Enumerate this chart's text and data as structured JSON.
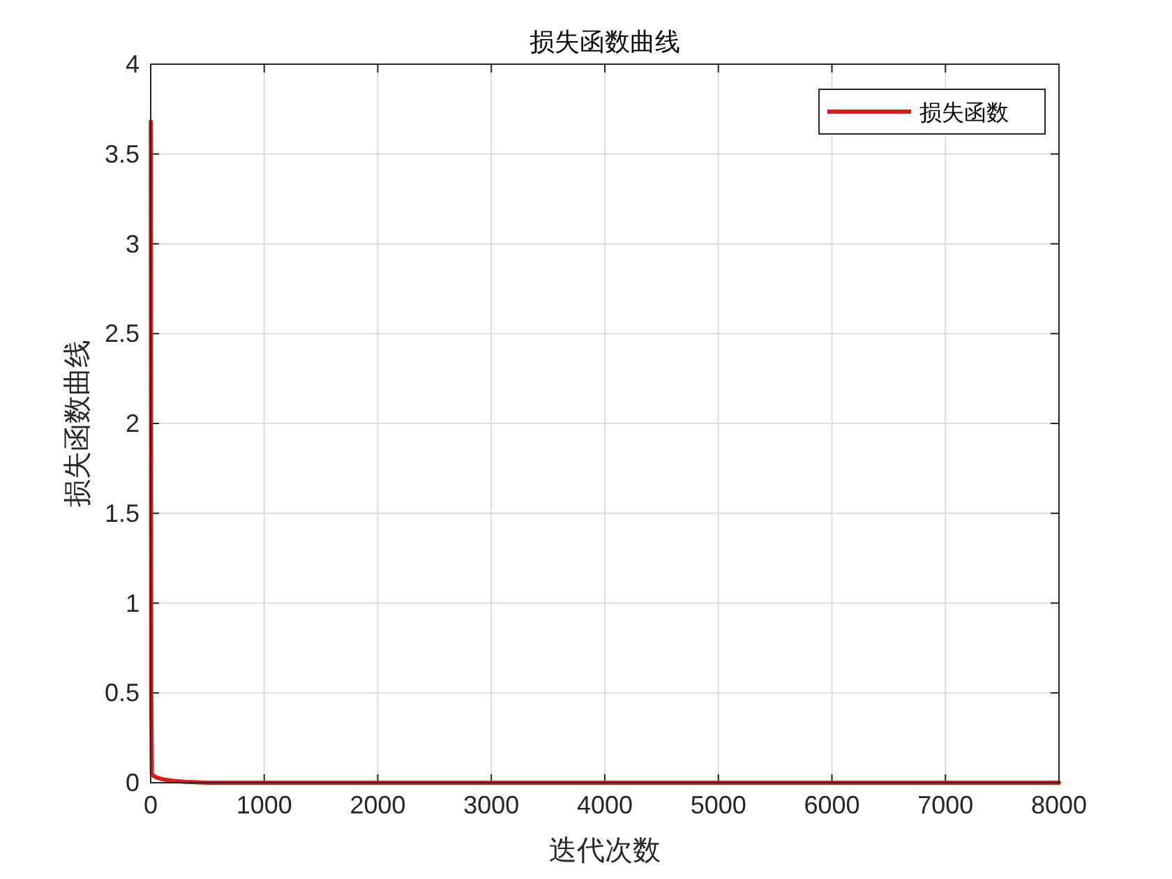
{
  "chart_data": {
    "type": "line",
    "title": "损失函数曲线",
    "xlabel": "迭代次数",
    "ylabel": "损失函数曲线",
    "series": [
      {
        "name": "损失函数",
        "color": "#d11f1f",
        "x": [
          1,
          5,
          10,
          20,
          50,
          100,
          200,
          300,
          500,
          1000,
          2000,
          4000,
          6000,
          8000
        ],
        "values": [
          3.68,
          0.5,
          0.05,
          0.04,
          0.03,
          0.02,
          0.01,
          0.005,
          0,
          0,
          0,
          0,
          0,
          0
        ]
      }
    ],
    "xlim": [
      0,
      8000
    ],
    "xticks": [
      0,
      1000,
      2000,
      3000,
      4000,
      5000,
      6000,
      7000,
      8000
    ],
    "ylim": [
      0,
      4
    ],
    "yticks": [
      0,
      0.5,
      1,
      1.5,
      2,
      2.5,
      3,
      3.5,
      4
    ],
    "grid": true,
    "legend": "top right",
    "line_style": "solid"
  }
}
